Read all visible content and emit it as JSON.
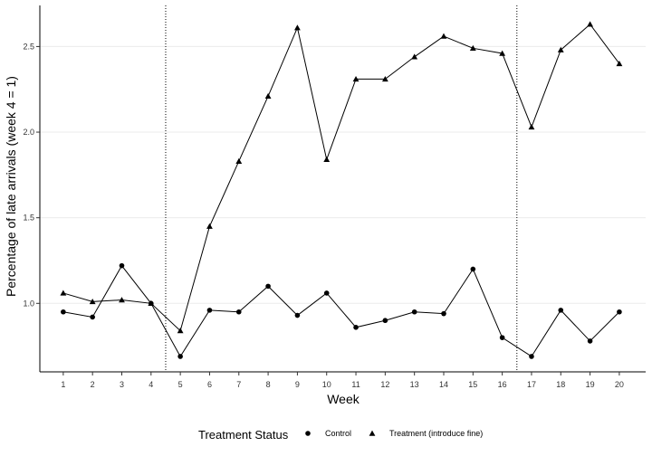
{
  "chart_data": {
    "type": "line",
    "xlabel": "Week",
    "ylabel": "Percentage of late arrivals (week 4 = 1)",
    "x": [
      1,
      2,
      3,
      4,
      5,
      6,
      7,
      8,
      9,
      10,
      11,
      12,
      13,
      14,
      15,
      16,
      17,
      18,
      19,
      20
    ],
    "x_ticks": [
      "1",
      "2",
      "3",
      "4",
      "5",
      "6",
      "7",
      "8",
      "9",
      "10",
      "11",
      "12",
      "13",
      "14",
      "15",
      "16",
      "17",
      "18",
      "19",
      "20"
    ],
    "y_ticks": [
      "1.0",
      "1.5",
      "2.0",
      "2.5"
    ],
    "y_tick_values": [
      1.0,
      1.5,
      2.0,
      2.5
    ],
    "xlim": [
      0.2,
      20.9
    ],
    "ylim": [
      0.6,
      2.74
    ],
    "grid": "horizontal major lines",
    "vlines": [
      4.5,
      16.5
    ],
    "series": [
      {
        "name": "Control",
        "marker": "circle",
        "values": [
          0.95,
          0.92,
          1.22,
          1.0,
          0.69,
          0.96,
          0.95,
          1.1,
          0.93,
          1.06,
          0.86,
          0.9,
          0.95,
          0.94,
          1.2,
          0.8,
          0.69,
          0.96,
          0.78,
          0.95
        ]
      },
      {
        "name": "Treatment (introduce fine)",
        "marker": "triangle",
        "values": [
          1.06,
          1.01,
          1.02,
          1.0,
          0.84,
          1.45,
          1.83,
          2.21,
          2.61,
          1.84,
          2.31,
          2.31,
          2.44,
          2.56,
          2.49,
          2.46,
          2.03,
          2.48,
          2.63,
          2.4
        ]
      }
    ],
    "legend": {
      "title": "Treatment Status",
      "position": "bottom"
    }
  },
  "colors": {
    "line": "#000000",
    "grid": "#ebebeb",
    "text": "#333333",
    "background": "#ffffff"
  }
}
